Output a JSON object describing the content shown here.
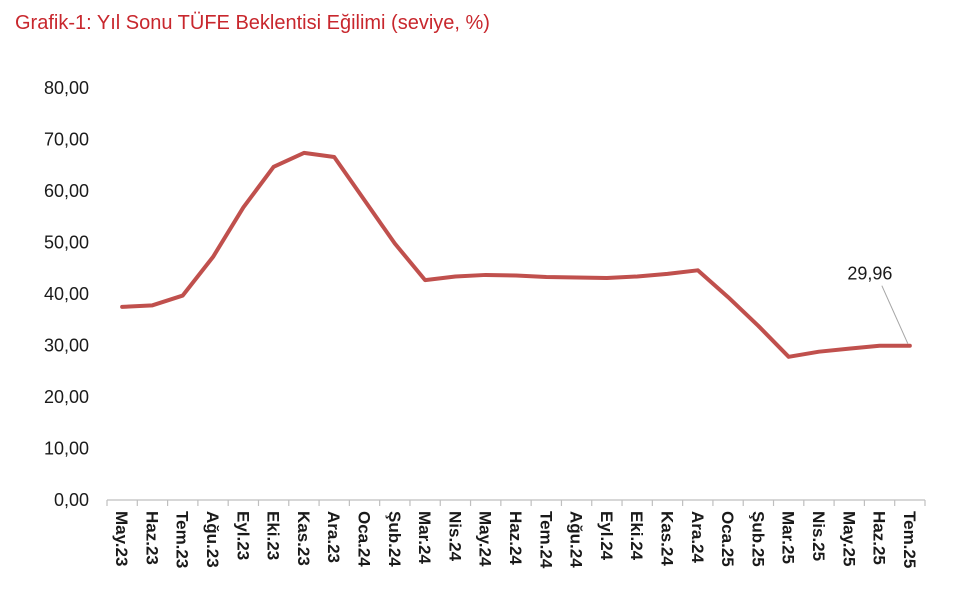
{
  "chart_data": {
    "type": "line",
    "title": "Grafik-1: Yıl Sonu TÜFE Beklentisi Eğilimi (seviye, %)",
    "xlabel": "",
    "ylabel": "",
    "ylim": [
      0,
      80
    ],
    "yticks": [
      "0,00",
      "10,00",
      "20,00",
      "30,00",
      "40,00",
      "50,00",
      "60,00",
      "70,00",
      "80,00"
    ],
    "grid": false,
    "categories": [
      "May.23",
      "Haz.23",
      "Tem.23",
      "Ağu.23",
      "Eyl.23",
      "Eki.23",
      "Kas.23",
      "Ara.23",
      "Oca.24",
      "Şub.24",
      "Mar.24",
      "Nis.24",
      "May.24",
      "Haz.24",
      "Tem.24",
      "Ağu.24",
      "Eyl.24",
      "Eki.24",
      "Kas.24",
      "Ara.24",
      "Oca.25",
      "Şub.25",
      "Mar.25",
      "Nis.25",
      "May.25",
      "Haz.25",
      "Tem.25"
    ],
    "series": [
      {
        "color": "#c0504d",
        "values": [
          37.5,
          37.8,
          39.7,
          47.2,
          56.8,
          64.7,
          67.4,
          66.6,
          58.2,
          49.8,
          42.7,
          43.4,
          43.7,
          43.6,
          43.3,
          43.2,
          43.1,
          43.4,
          43.9,
          44.6,
          39.4,
          33.8,
          27.8,
          28.8,
          29.4,
          29.95,
          29.96
        ]
      }
    ],
    "annotations": [
      {
        "category": "Tem.25",
        "text": "29,96"
      }
    ]
  }
}
